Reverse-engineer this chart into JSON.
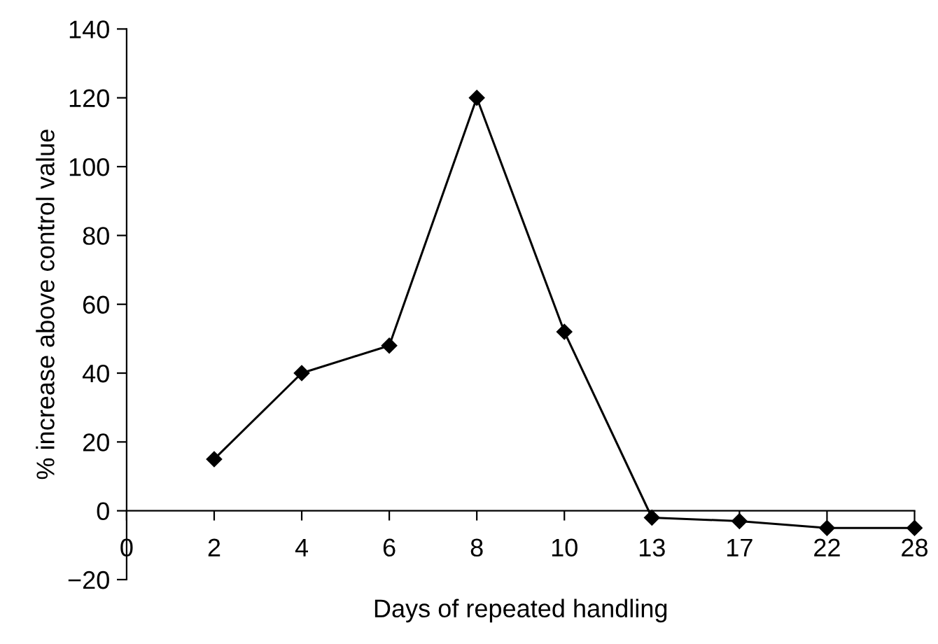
{
  "chart_data": {
    "type": "line",
    "xlabel": "Days of repeated handling",
    "ylabel": "% increase above control value",
    "categories": [
      "0",
      "2",
      "4",
      "6",
      "8",
      "10",
      "13",
      "17",
      "22",
      "28"
    ],
    "series": [
      {
        "color": "#000000",
        "values": [
          null,
          15,
          40,
          48,
          120,
          52,
          -2,
          -3,
          -5,
          -5
        ]
      }
    ],
    "ylim": [
      -20,
      140
    ],
    "yticks": [
      {
        "value": -20,
        "label": "−20"
      },
      0,
      20,
      40,
      60,
      80,
      100,
      120,
      140
    ],
    "marker": "diamond",
    "line_style": "solid",
    "grid": false
  }
}
